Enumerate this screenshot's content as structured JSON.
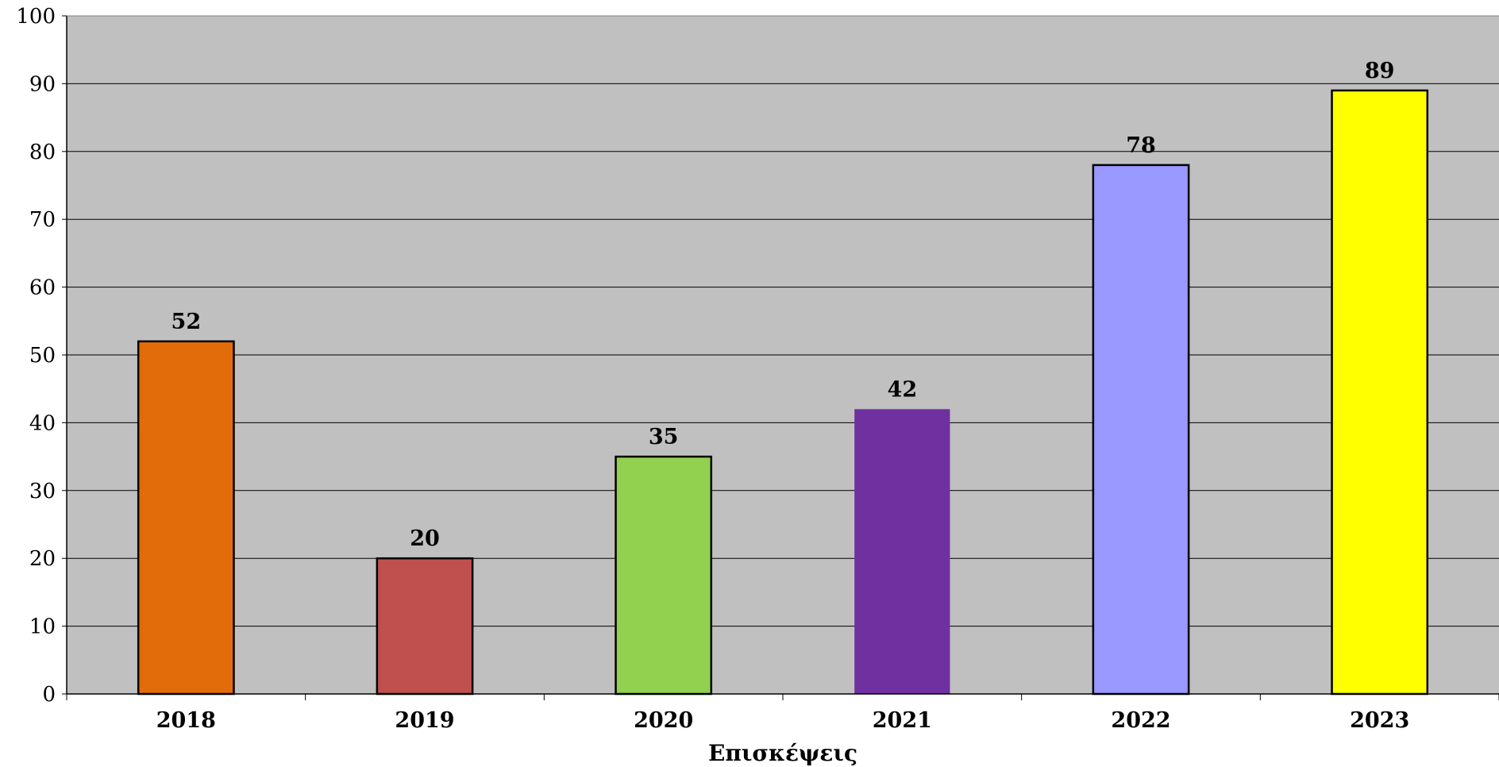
{
  "chart_data": {
    "type": "bar",
    "title": "",
    "xlabel": "Επισκέψεις",
    "ylabel": "",
    "categories": [
      "2018",
      "2019",
      "2020",
      "2021",
      "2022",
      "2023"
    ],
    "values": [
      52,
      20,
      35,
      42,
      78,
      89
    ],
    "data_labels": [
      "52",
      "20",
      "35",
      "42",
      "78",
      "89"
    ],
    "bar_colors": [
      "#E36C0A",
      "#C0504D",
      "#92D050",
      "#7030A0",
      "#9999FF",
      "#FFFF00"
    ],
    "ylim": [
      0,
      100
    ],
    "yticks": [
      0,
      10,
      20,
      30,
      40,
      50,
      60,
      70,
      80,
      90,
      100
    ],
    "ytick_labels": [
      "0",
      "10",
      "20",
      "30",
      "40",
      "50",
      "60",
      "70",
      "80",
      "90",
      "100"
    ],
    "grid": true,
    "legend": "none",
    "plot_background": "#C0C0C0"
  }
}
